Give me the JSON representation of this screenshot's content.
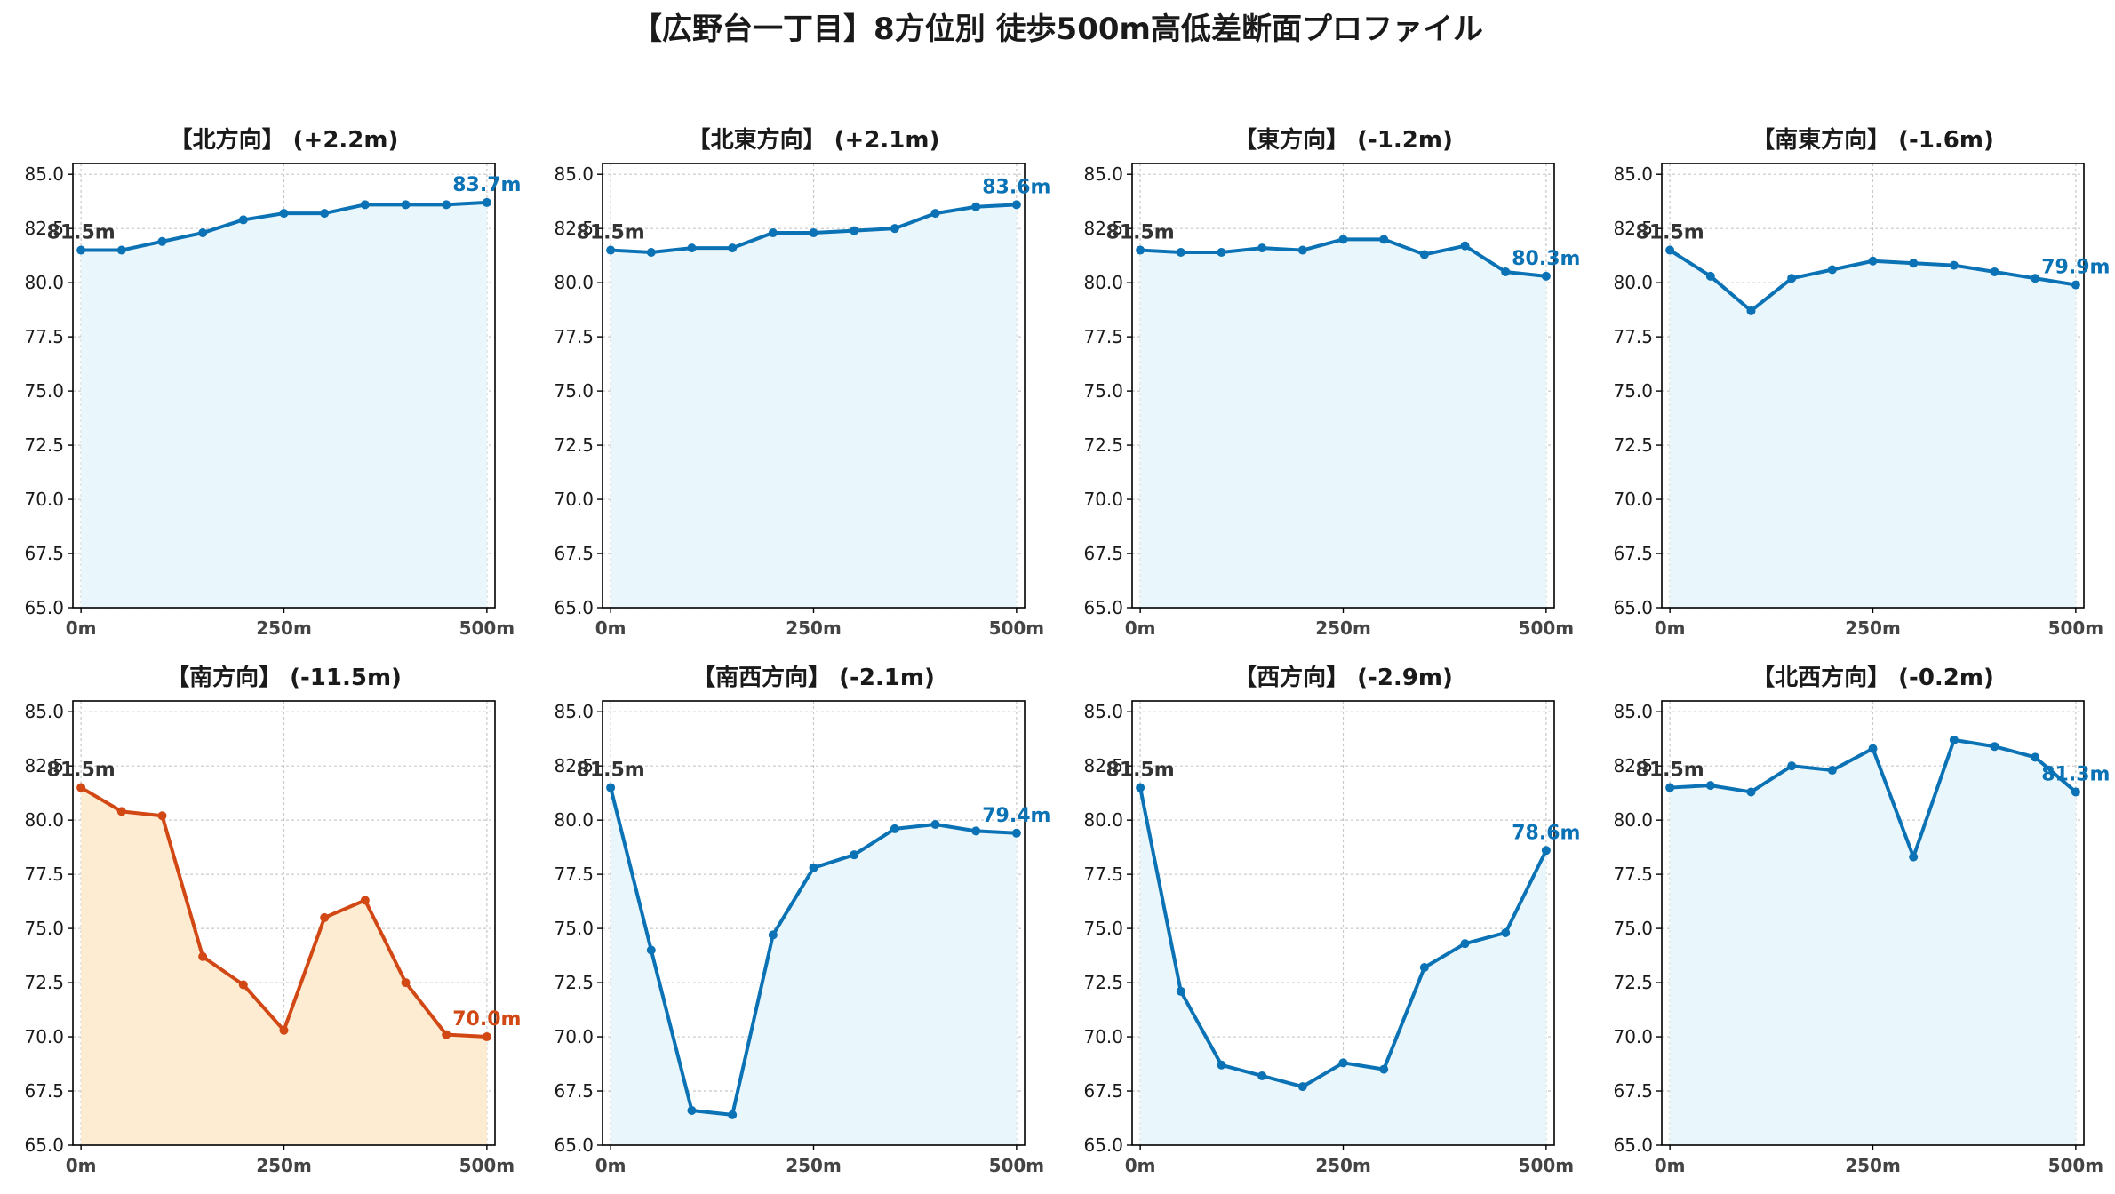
{
  "page_title": "【広野台一丁目】8方位別 徒歩500m高低差断面プロファイル",
  "colors": {
    "line": "#0a72b5",
    "fill": "#e9f6fb",
    "highlight_line": "#d24814",
    "highlight_fill": "#fdebd2",
    "start_label": "#333333",
    "grid": "#c8c8c8",
    "text": "#1a1a1a"
  },
  "chart_data": [
    {
      "type": "area",
      "title": "【北方向】 (+2.2m)",
      "x": [
        0,
        50,
        100,
        150,
        200,
        250,
        300,
        350,
        400,
        450,
        500
      ],
      "values": [
        81.5,
        81.5,
        81.9,
        82.3,
        82.9,
        83.2,
        83.2,
        83.6,
        83.6,
        83.6,
        83.7
      ],
      "ylim": [
        65,
        85.5
      ],
      "yticks": [
        "65.0",
        "67.5",
        "70.0",
        "72.5",
        "75.0",
        "77.5",
        "80.0",
        "82.5",
        "85.0"
      ],
      "xticks": [
        "0m",
        "250m",
        "500m"
      ],
      "start_label": "81.5m",
      "end_label": "83.7m",
      "highlight": false,
      "grid": true
    },
    {
      "type": "area",
      "title": "【北東方向】 (+2.1m)",
      "x": [
        0,
        50,
        100,
        150,
        200,
        250,
        300,
        350,
        400,
        450,
        500
      ],
      "values": [
        81.5,
        81.4,
        81.6,
        81.6,
        82.3,
        82.3,
        82.4,
        82.5,
        83.2,
        83.5,
        83.6
      ],
      "ylim": [
        65,
        85.5
      ],
      "yticks": [
        "65.0",
        "67.5",
        "70.0",
        "72.5",
        "75.0",
        "77.5",
        "80.0",
        "82.5",
        "85.0"
      ],
      "xticks": [
        "0m",
        "250m",
        "500m"
      ],
      "start_label": "81.5m",
      "end_label": "83.6m",
      "highlight": false,
      "grid": true
    },
    {
      "type": "area",
      "title": "【東方向】 (-1.2m)",
      "x": [
        0,
        50,
        100,
        150,
        200,
        250,
        300,
        350,
        400,
        450,
        500
      ],
      "values": [
        81.5,
        81.4,
        81.4,
        81.6,
        81.5,
        82.0,
        82.0,
        81.3,
        81.7,
        80.5,
        80.3
      ],
      "ylim": [
        65,
        85.5
      ],
      "yticks": [
        "65.0",
        "67.5",
        "70.0",
        "72.5",
        "75.0",
        "77.5",
        "80.0",
        "82.5",
        "85.0"
      ],
      "xticks": [
        "0m",
        "250m",
        "500m"
      ],
      "start_label": "81.5m",
      "end_label": "80.3m",
      "highlight": false,
      "grid": true
    },
    {
      "type": "area",
      "title": "【南東方向】 (-1.6m)",
      "x": [
        0,
        50,
        100,
        150,
        200,
        250,
        300,
        350,
        400,
        450,
        500
      ],
      "values": [
        81.5,
        80.3,
        78.7,
        80.2,
        80.6,
        81.0,
        80.9,
        80.8,
        80.5,
        80.2,
        79.9
      ],
      "ylim": [
        65,
        85.5
      ],
      "yticks": [
        "65.0",
        "67.5",
        "70.0",
        "72.5",
        "75.0",
        "77.5",
        "80.0",
        "82.5",
        "85.0"
      ],
      "xticks": [
        "0m",
        "250m",
        "500m"
      ],
      "start_label": "81.5m",
      "end_label": "79.9m",
      "highlight": false,
      "grid": true
    },
    {
      "type": "area",
      "title": "【南方向】 (-11.5m)",
      "x": [
        0,
        50,
        100,
        150,
        200,
        250,
        300,
        350,
        400,
        450,
        500
      ],
      "values": [
        81.5,
        80.4,
        80.2,
        73.7,
        72.4,
        70.3,
        75.5,
        76.3,
        72.5,
        70.1,
        70.0
      ],
      "ylim": [
        65,
        85.5
      ],
      "yticks": [
        "65.0",
        "67.5",
        "70.0",
        "72.5",
        "75.0",
        "77.5",
        "80.0",
        "82.5",
        "85.0"
      ],
      "xticks": [
        "0m",
        "250m",
        "500m"
      ],
      "start_label": "81.5m",
      "end_label": "70.0m",
      "highlight": true,
      "grid": true
    },
    {
      "type": "area",
      "title": "【南西方向】 (-2.1m)",
      "x": [
        0,
        50,
        100,
        150,
        200,
        250,
        300,
        350,
        400,
        450,
        500
      ],
      "values": [
        81.5,
        74.0,
        66.6,
        66.4,
        74.7,
        77.8,
        78.4,
        79.6,
        79.8,
        79.5,
        79.4
      ],
      "ylim": [
        65,
        85.5
      ],
      "yticks": [
        "65.0",
        "67.5",
        "70.0",
        "72.5",
        "75.0",
        "77.5",
        "80.0",
        "82.5",
        "85.0"
      ],
      "xticks": [
        "0m",
        "250m",
        "500m"
      ],
      "start_label": "81.5m",
      "end_label": "79.4m",
      "highlight": false,
      "grid": true
    },
    {
      "type": "area",
      "title": "【西方向】 (-2.9m)",
      "x": [
        0,
        50,
        100,
        150,
        200,
        250,
        300,
        350,
        400,
        450,
        500
      ],
      "values": [
        81.5,
        72.1,
        68.7,
        68.2,
        67.7,
        68.8,
        68.5,
        73.2,
        74.3,
        74.8,
        78.6
      ],
      "ylim": [
        65,
        85.5
      ],
      "yticks": [
        "65.0",
        "67.5",
        "70.0",
        "72.5",
        "75.0",
        "77.5",
        "80.0",
        "82.5",
        "85.0"
      ],
      "xticks": [
        "0m",
        "250m",
        "500m"
      ],
      "start_label": "81.5m",
      "end_label": "78.6m",
      "highlight": false,
      "grid": true
    },
    {
      "type": "area",
      "title": "【北西方向】 (-0.2m)",
      "x": [
        0,
        50,
        100,
        150,
        200,
        250,
        300,
        350,
        400,
        450,
        500
      ],
      "values": [
        81.5,
        81.6,
        81.3,
        82.5,
        82.3,
        83.3,
        78.3,
        83.7,
        83.4,
        82.9,
        81.3
      ],
      "ylim": [
        65,
        85.5
      ],
      "yticks": [
        "65.0",
        "67.5",
        "70.0",
        "72.5",
        "75.0",
        "77.5",
        "80.0",
        "82.5",
        "85.0"
      ],
      "xticks": [
        "0m",
        "250m",
        "500m"
      ],
      "start_label": "81.5m",
      "end_label": "81.3m",
      "highlight": false,
      "grid": true
    }
  ]
}
